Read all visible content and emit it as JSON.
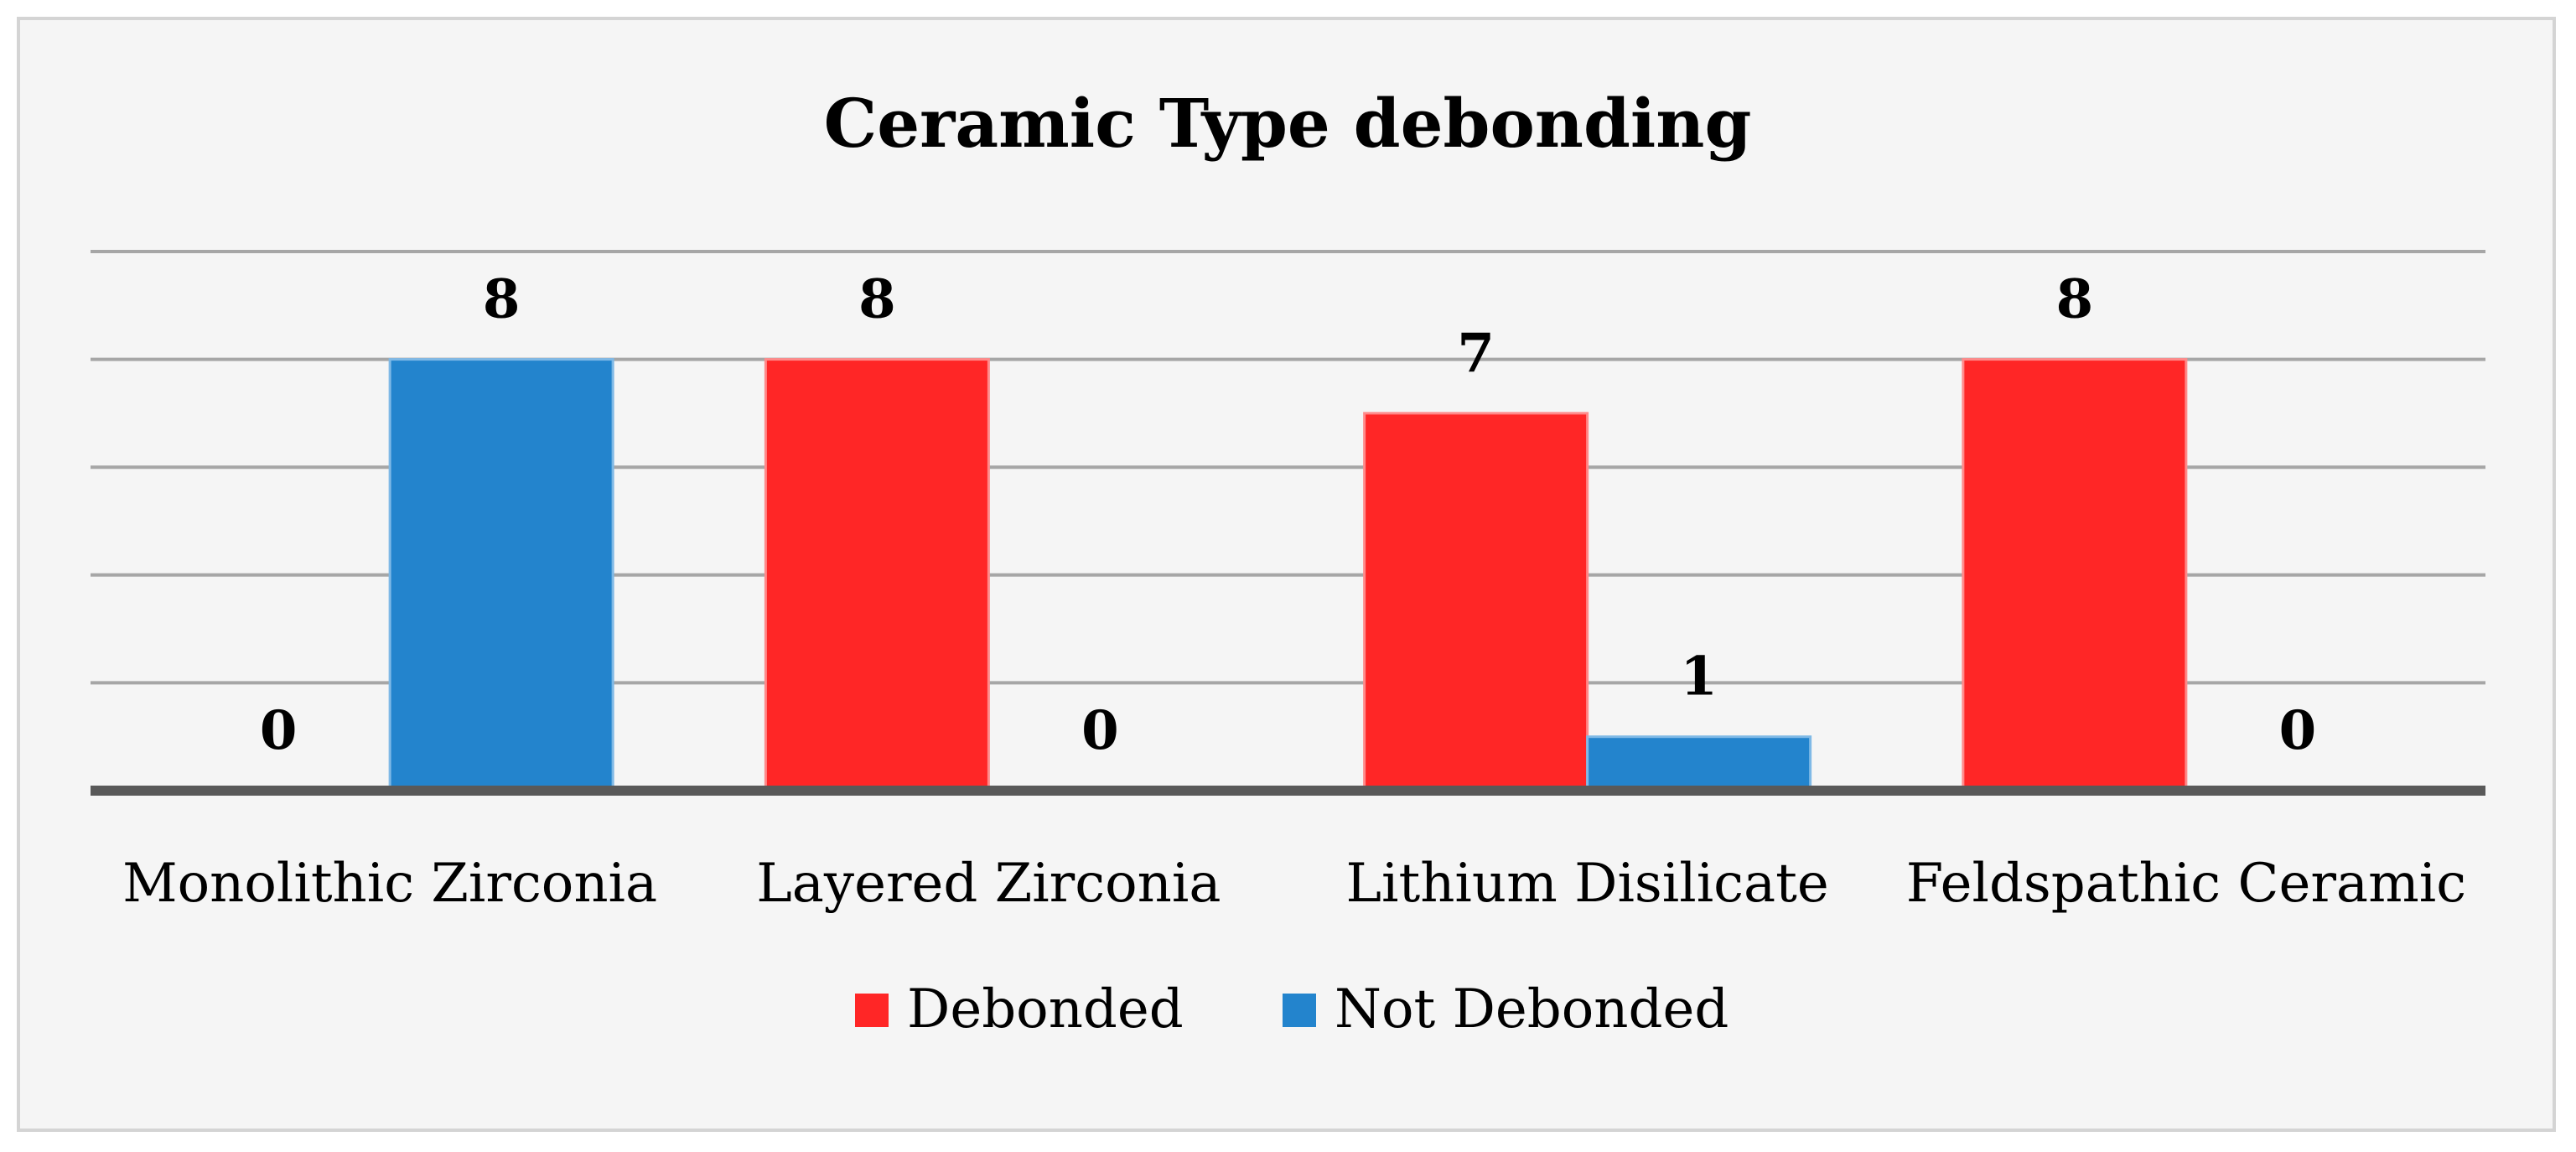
{
  "chart_data": {
    "type": "bar",
    "title": "Ceramic Type debonding",
    "categories": [
      "Monolithic Zirconia",
      "Layered Zirconia",
      "Lithium Disilicate",
      "Feldspathic Ceramic"
    ],
    "series": [
      {
        "name": "Debonded",
        "values": [
          0,
          8,
          7,
          8
        ],
        "color": "#ff2626"
      },
      {
        "name": "Not Debonded",
        "values": [
          8,
          0,
          1,
          0
        ],
        "color": "#2384cd"
      }
    ],
    "ylim": [
      0,
      10
    ],
    "grid": true,
    "legend_position": "bottom",
    "data_labels": true
  }
}
